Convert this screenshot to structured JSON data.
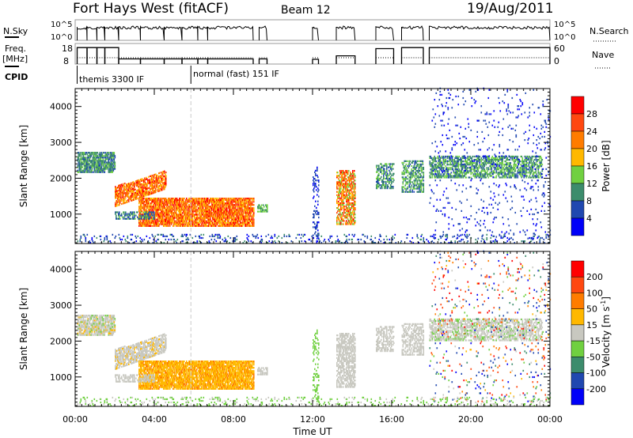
{
  "header": {
    "station": "Fort Hays West (fitACF)",
    "beam": "Beam 12",
    "date": "19/Aug/2011"
  },
  "chart_data": {
    "type": "heatmap",
    "time_axis": {
      "label": "Time UT",
      "range_hours": [
        0,
        24
      ],
      "ticks": [
        "00:00",
        "04:00",
        "08:00",
        "12:00",
        "16:00",
        "20:00",
        "00:00"
      ],
      "tick_hours": [
        0,
        4,
        8,
        12,
        16,
        20,
        24
      ]
    },
    "range_axis": {
      "label": "Slant Range [km]",
      "range": [
        180,
        4500
      ],
      "ticks": [
        1000,
        2000,
        3000,
        4000
      ]
    },
    "cpid_switch_hour": 5.85,
    "nsky": {
      "label": "N.Sky",
      "right_label": "N.Search",
      "ticks": [
        "10^5",
        "10^0"
      ]
    },
    "freq": {
      "label": "Freq.",
      "unit": "[MHz]",
      "ticks": [
        "18",
        "8"
      ],
      "right_label": "Nave",
      "right_ticks": [
        "60",
        "0"
      ],
      "range": [
        8,
        18
      ]
    },
    "cpid": {
      "label": "CPID",
      "programs": [
        {
          "name": "themis 3300 IF",
          "start_hour": 0.1
        },
        {
          "name": "normal (fast) 151 IF",
          "start_hour": 5.85
        }
      ]
    },
    "operating_intervals": [
      {
        "start": 0.1,
        "end": 0.6,
        "freq": 16
      },
      {
        "start": 0.6,
        "end": 1.1,
        "freq": 16
      },
      {
        "start": 1.1,
        "end": 1.5,
        "freq": 16
      },
      {
        "start": 1.5,
        "end": 2.2,
        "freq": 16
      },
      {
        "start": 2.2,
        "end": 3.3,
        "freq": 10.5
      },
      {
        "start": 3.3,
        "end": 4.5,
        "freq": 10.5
      },
      {
        "start": 4.5,
        "end": 5.4,
        "freq": 10.5
      },
      {
        "start": 5.4,
        "end": 6.2,
        "freq": 10.5
      },
      {
        "start": 6.2,
        "end": 6.7,
        "freq": 10.5
      },
      {
        "start": 6.7,
        "end": 9.0,
        "freq": 10.5
      },
      {
        "start": 9.3,
        "end": 9.7,
        "freq": 10.5
      },
      {
        "start": 12.0,
        "end": 12.3,
        "freq": 10.3
      },
      {
        "start": 13.2,
        "end": 14.15,
        "freq": 12
      },
      {
        "start": 15.2,
        "end": 16.1,
        "freq": 15.5
      },
      {
        "start": 16.5,
        "end": 17.6,
        "freq": 16
      },
      {
        "start": 17.9,
        "end": 24,
        "freq": 16
      }
    ],
    "power_colorbar": {
      "label": "Power [dB]",
      "ticks": [
        "28",
        "24",
        "20",
        "16",
        "12",
        "8",
        "4"
      ],
      "colors": [
        "#0000f8",
        "#2048b0",
        "#3c8c6c",
        "#70d040",
        "#ffb800",
        "#ff7c00",
        "#ff4810",
        "#ff0000"
      ]
    },
    "velocity_colorbar": {
      "label": "Velocity [m s",
      "label_sup": "-1",
      "label_end": "]",
      "ticks": [
        "200",
        "100",
        "50",
        "15",
        "-15",
        "-50",
        "-100",
        "-200"
      ],
      "colors": [
        "#0000f8",
        "#2048b0",
        "#3c8c6c",
        "#70d040",
        "#c8c8c0",
        "#ffb800",
        "#ff7c00",
        "#ff4810",
        "#ff0000"
      ]
    },
    "echo_regions": [
      {
        "t": [
          0.1,
          2.0
        ],
        "r": [
          2150,
          2700
        ],
        "power": [
          6,
          14
        ],
        "vel": [
          -20,
          20
        ],
        "density": 0.7
      },
      {
        "t": [
          2.0,
          4.6
        ],
        "r": [
          1200,
          1750
        ],
        "r_end": [
          1700,
          2200
        ],
        "power": [
          16,
          30
        ],
        "vel": [
          -20,
          10
        ],
        "density": 0.7
      },
      {
        "t": [
          3.2,
          9.0
        ],
        "r": [
          650,
          1450
        ],
        "power": [
          16,
          30
        ],
        "vel": [
          -60,
          -15
        ],
        "density": 0.8
      },
      {
        "t": [
          2.0,
          4.0
        ],
        "r": [
          850,
          1050
        ],
        "power": [
          4,
          14
        ],
        "vel": [
          -15,
          15
        ],
        "density": 0.5
      },
      {
        "t": [
          9.2,
          9.7
        ],
        "r": [
          1050,
          1250
        ],
        "power": [
          8,
          16
        ],
        "vel": [
          -10,
          10
        ],
        "density": 0.6
      },
      {
        "t": [
          12.0,
          12.3
        ],
        "r": [
          300,
          2300
        ],
        "power": [
          2,
          8
        ],
        "vel": [
          15,
          50
        ],
        "density": 0.25
      },
      {
        "t": [
          13.2,
          14.15
        ],
        "r": [
          700,
          2200
        ],
        "power": [
          12,
          30
        ],
        "vel": [
          -15,
          15
        ],
        "density": 0.6
      },
      {
        "t": [
          15.2,
          16.1
        ],
        "r": [
          1700,
          2400
        ],
        "power": [
          6,
          14
        ],
        "vel": [
          -15,
          15
        ],
        "density": 0.5
      },
      {
        "t": [
          16.5,
          17.6
        ],
        "r": [
          1600,
          2500
        ],
        "power": [
          6,
          16
        ],
        "vel": [
          -15,
          15
        ],
        "density": 0.5
      },
      {
        "t": [
          17.9,
          23.6
        ],
        "r": [
          2000,
          2600
        ],
        "power": [
          6,
          16
        ],
        "vel": [
          -15,
          20
        ],
        "density": 0.55
      },
      {
        "t": [
          17.9,
          24
        ],
        "r": [
          300,
          4500
        ],
        "power": [
          1,
          8
        ],
        "vel": [
          -250,
          250
        ],
        "density": 0.04
      },
      {
        "t": [
          0.1,
          24
        ],
        "r": [
          180,
          420
        ],
        "power": [
          2,
          10
        ],
        "vel": [
          -10,
          50
        ],
        "density": 0.12
      }
    ]
  }
}
